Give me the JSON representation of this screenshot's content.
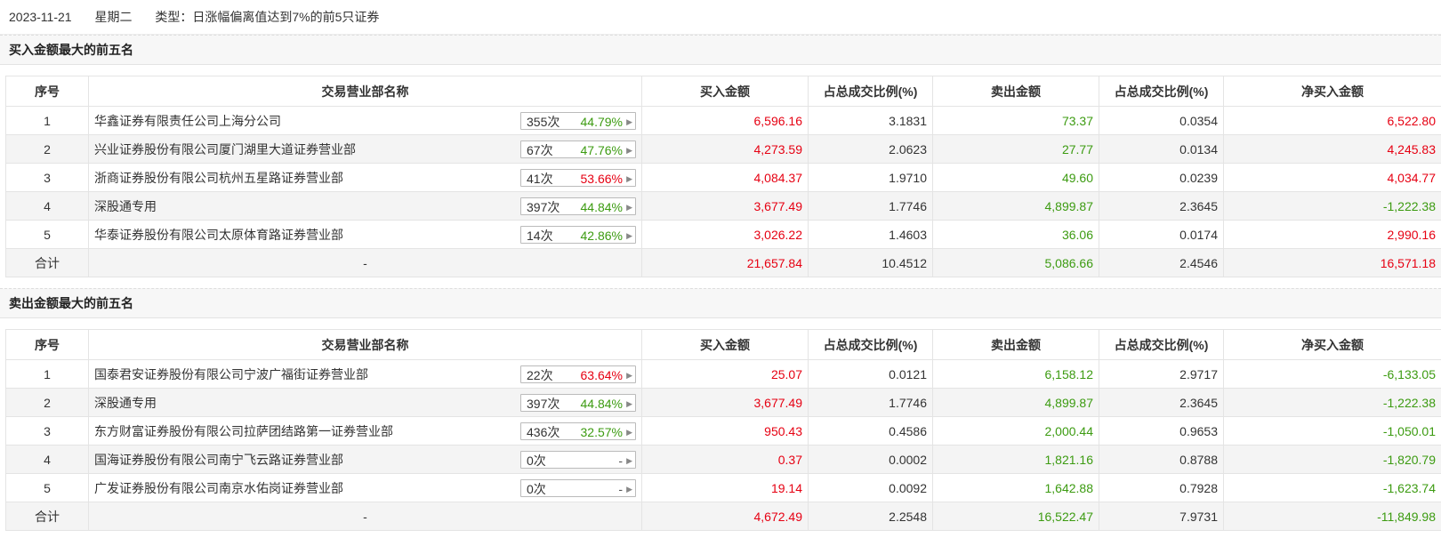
{
  "header": {
    "date": "2023-11-21",
    "weekday": "星期二",
    "type_text": "类型：日涨幅偏离值达到7%的前5只证券"
  },
  "columns": [
    "序号",
    "交易营业部名称",
    "买入金额",
    "占总成交比例(%)",
    "卖出金额",
    "占总成交比例(%)",
    "净买入金额"
  ],
  "buy_section": {
    "title": "买入金额最大的前五名",
    "rows": [
      {
        "idx": "1",
        "name": "华鑫证券有限责任公司上海分公司",
        "count": "355次",
        "pct": "44.79%",
        "pct_color": "green",
        "buy": "6,596.16",
        "buy_ratio": "3.1831",
        "sell": "73.37",
        "sell_ratio": "0.0354",
        "net": "6,522.80",
        "net_color": "red"
      },
      {
        "idx": "2",
        "name": "兴业证券股份有限公司厦门湖里大道证券营业部",
        "count": "67次",
        "pct": "47.76%",
        "pct_color": "green",
        "buy": "4,273.59",
        "buy_ratio": "2.0623",
        "sell": "27.77",
        "sell_ratio": "0.0134",
        "net": "4,245.83",
        "net_color": "red"
      },
      {
        "idx": "3",
        "name": "浙商证券股份有限公司杭州五星路证券营业部",
        "count": "41次",
        "pct": "53.66%",
        "pct_color": "red",
        "buy": "4,084.37",
        "buy_ratio": "1.9710",
        "sell": "49.60",
        "sell_ratio": "0.0239",
        "net": "4,034.77",
        "net_color": "red"
      },
      {
        "idx": "4",
        "name": "深股通专用",
        "count": "397次",
        "pct": "44.84%",
        "pct_color": "green",
        "buy": "3,677.49",
        "buy_ratio": "1.7746",
        "sell": "4,899.87",
        "sell_ratio": "2.3645",
        "net": "-1,222.38",
        "net_color": "green"
      },
      {
        "idx": "5",
        "name": "华泰证券股份有限公司太原体育路证券营业部",
        "count": "14次",
        "pct": "42.86%",
        "pct_color": "green",
        "buy": "3,026.22",
        "buy_ratio": "1.4603",
        "sell": "36.06",
        "sell_ratio": "0.0174",
        "net": "2,990.16",
        "net_color": "red"
      }
    ],
    "total": {
      "label": "合计",
      "name": "-",
      "buy": "21,657.84",
      "buy_ratio": "10.4512",
      "sell": "5,086.66",
      "sell_ratio": "2.4546",
      "net": "16,571.18",
      "net_color": "red"
    }
  },
  "sell_section": {
    "title": "卖出金额最大的前五名",
    "rows": [
      {
        "idx": "1",
        "name": "国泰君安证券股份有限公司宁波广福街证券营业部",
        "count": "22次",
        "pct": "63.64%",
        "pct_color": "red",
        "buy": "25.07",
        "buy_ratio": "0.0121",
        "sell": "6,158.12",
        "sell_ratio": "2.9717",
        "net": "-6,133.05",
        "net_color": "green"
      },
      {
        "idx": "2",
        "name": "深股通专用",
        "count": "397次",
        "pct": "44.84%",
        "pct_color": "green",
        "buy": "3,677.49",
        "buy_ratio": "1.7746",
        "sell": "4,899.87",
        "sell_ratio": "2.3645",
        "net": "-1,222.38",
        "net_color": "green"
      },
      {
        "idx": "3",
        "name": "东方财富证券股份有限公司拉萨团结路第一证券营业部",
        "count": "436次",
        "pct": "32.57%",
        "pct_color": "green",
        "buy": "950.43",
        "buy_ratio": "0.4586",
        "sell": "2,000.44",
        "sell_ratio": "0.9653",
        "net": "-1,050.01",
        "net_color": "green"
      },
      {
        "idx": "4",
        "name": "国海证券股份有限公司南宁飞云路证券营业部",
        "count": "0次",
        "pct": "-",
        "pct_color": "gray",
        "buy": "0.37",
        "buy_ratio": "0.0002",
        "sell": "1,821.16",
        "sell_ratio": "0.8788",
        "net": "-1,820.79",
        "net_color": "green"
      },
      {
        "idx": "5",
        "name": "广发证券股份有限公司南京水佑岗证券营业部",
        "count": "0次",
        "pct": "-",
        "pct_color": "gray",
        "buy": "19.14",
        "buy_ratio": "0.0092",
        "sell": "1,642.88",
        "sell_ratio": "0.7928",
        "net": "-1,623.74",
        "net_color": "green"
      }
    ],
    "total": {
      "label": "合计",
      "name": "-",
      "buy": "4,672.49",
      "buy_ratio": "2.2548",
      "sell": "16,522.47",
      "sell_ratio": "7.9731",
      "net": "-11,849.98",
      "net_color": "green"
    }
  },
  "colors": {
    "red": "#e60012",
    "green": "#3c9b11",
    "gray": "#555555"
  },
  "icons": {
    "badge_arrow": "caret-right-icon"
  }
}
